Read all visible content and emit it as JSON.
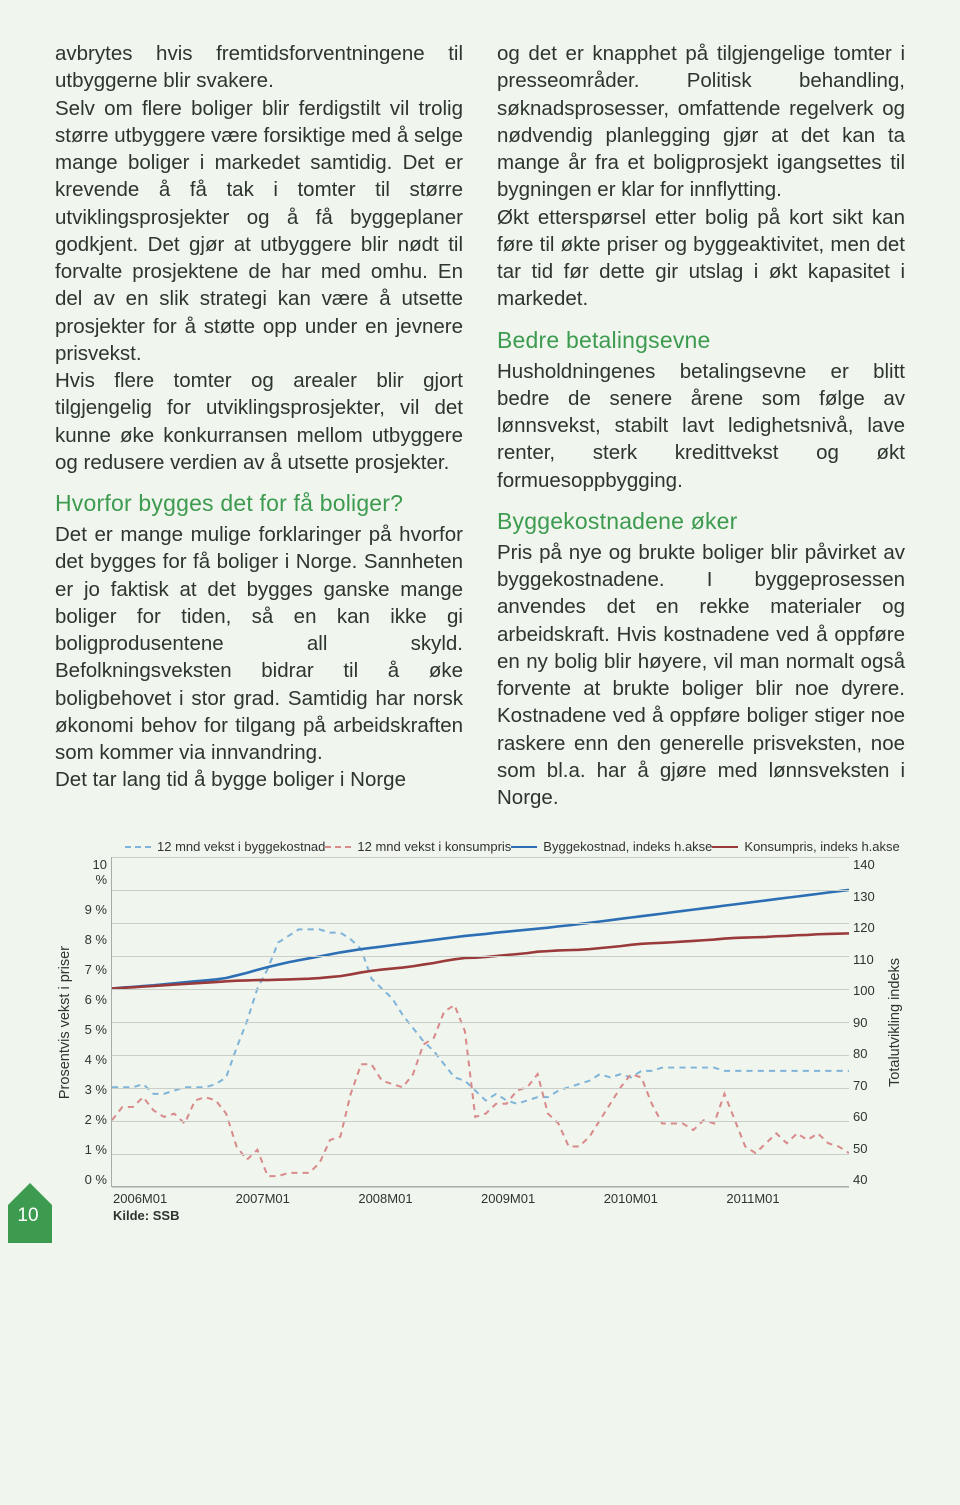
{
  "colors": {
    "page_bg": "#f0f5ee",
    "body_text": "#2d3530",
    "heading": "#3d9b4f",
    "grid": "#c9cec9",
    "series_bygge_dash": "#7fb4d9",
    "series_konsum_dash": "#d98b8b",
    "series_bygge_solid": "#2d6fb4",
    "series_konsum_solid": "#9a3a3a",
    "badge": "#3d9b4f"
  },
  "left_column": {
    "p1": "avbrytes hvis fremtidsforventningene til utbyggerne blir svakere.",
    "p2": "Selv om flere boliger blir ferdigstilt vil trolig større utbyggere være forsiktige med å selge mange boliger i markedet samtidig. Det er krevende å få tak i tomter til større utviklingsprosjekter og å få byggeplaner godkjent. Det gjør at utbyggere blir nødt til forvalte prosjektene de har med omhu. En del av en slik strategi kan være å utsette prosjekter for å støtte opp under en jevnere prisvekst.",
    "p3": "Hvis flere tomter og arealer blir gjort tilgjengelig for utviklingsprosjekter, vil det kunne øke konkurransen mellom utbyggere og redusere verdien av å utsette prosjekter.",
    "h1": "Hvorfor bygges det for få boliger?",
    "p4": "Det er mange mulige forklaringer på hvorfor det bygges for få boliger i Norge. Sannheten er jo faktisk at det bygges ganske mange boliger for tiden, så en kan ikke gi boligprodusentene all skyld. Befolkningsveksten bidrar til å øke boligbehovet i stor grad. Samtidig har norsk økonomi behov for tilgang på arbeidskraften som kommer via innvandring.",
    "p5": "Det tar lang tid å bygge boliger i Norge"
  },
  "right_column": {
    "p1": "og det er knapphet på tilgjengelige tomter i presseområder. Politisk behandling, søknadsprosesser, omfattende regelverk og nødvendig planlegging gjør at det kan ta mange år fra et boligprosjekt igangsettes til bygningen er klar for innflytting.",
    "p2": "Økt etterspørsel etter bolig på kort sikt kan føre til økte priser og byggeaktivitet, men det tar tid før dette gir utslag i økt kapasitet i markedet.",
    "h1": "Bedre betalingsevne",
    "p3": "Husholdningenes betalingsevne er blitt bedre de senere årene som følge av lønnsvekst, stabilt lavt ledighetsnivå, lave renter, sterk kredittvekst og økt formuesoppbygging.",
    "h2": "Byggekostnadene øker",
    "p4": "Pris på nye og brukte boliger blir påvirket av byggekostnadene. I byggeprosessen anvendes det en rekke materialer og arbeidskraft. Hvis kostnadene ved å oppføre en ny bolig blir høyere, vil man normalt også forvente at brukte boliger blir noe dyrere. Kostnadene ved å oppføre boliger stiger noe raskere enn den generelle prisveksten, noe som bl.a. har å gjøre med lønnsveksten i Norge."
  },
  "chart": {
    "legend": {
      "a": "12 mnd vekst i byggekostnad",
      "b": "12 mnd vekst i konsumpris",
      "c": "Byggekostnad, indeks h.akse",
      "d": "Konsumpris, indeks h.akse"
    },
    "y_left_label": "Prosentvis vekst i priser",
    "y_right_label": "Totalutvikling indeks",
    "y_left_ticks": [
      "10 %",
      "9 %",
      "8 %",
      "7 %",
      "6 %",
      "5 %",
      "4 %",
      "3 %",
      "2 %",
      "1 %",
      "0 %"
    ],
    "y_right_ticks": [
      "140",
      "130",
      "120",
      "110",
      "100",
      "90",
      "80",
      "70",
      "60",
      "50",
      "40"
    ],
    "x_ticks": [
      "2006M01",
      "2007M01",
      "2008M01",
      "2009M01",
      "2010M01",
      "2011M01"
    ],
    "source": "Kilde: SSB",
    "y_left_min": 0,
    "y_left_max": 10,
    "y_right_min": 40,
    "y_right_max": 140,
    "series": {
      "bygge_dash": [
        3.0,
        3.0,
        3.0,
        3.1,
        2.8,
        2.8,
        2.9,
        3.0,
        3.0,
        3.0,
        3.1,
        3.3,
        4.2,
        5.0,
        6.0,
        6.6,
        7.4,
        7.6,
        7.8,
        7.8,
        7.8,
        7.7,
        7.7,
        7.5,
        7.2,
        6.3,
        6.0,
        5.7,
        5.2,
        4.8,
        4.4,
        4.1,
        3.7,
        3.3,
        3.2,
        2.9,
        2.6,
        2.8,
        2.6,
        2.5,
        2.6,
        2.7,
        2.7,
        2.9,
        3.0,
        3.1,
        3.2,
        3.4,
        3.3,
        3.4,
        3.3,
        3.5,
        3.5,
        3.6,
        3.6,
        3.6,
        3.6,
        3.6,
        3.6,
        3.5,
        3.5,
        3.5,
        3.5,
        3.5,
        3.5,
        3.5,
        3.5,
        3.5,
        3.5,
        3.5,
        3.5,
        3.5
      ],
      "konsum_dash": [
        2.0,
        2.4,
        2.4,
        2.7,
        2.3,
        2.1,
        2.2,
        1.9,
        2.6,
        2.7,
        2.6,
        2.2,
        1.2,
        0.8,
        1.1,
        0.3,
        0.3,
        0.4,
        0.4,
        0.4,
        0.7,
        1.4,
        1.5,
        2.8,
        3.7,
        3.7,
        3.2,
        3.1,
        3.0,
        3.4,
        4.3,
        4.5,
        5.3,
        5.5,
        4.7,
        2.1,
        2.2,
        2.5,
        2.5,
        2.9,
        3.0,
        3.4,
        2.2,
        1.9,
        1.2,
        1.2,
        1.5,
        2.0,
        2.5,
        3.0,
        3.4,
        3.3,
        2.5,
        1.9,
        1.9,
        1.9,
        1.7,
        2.0,
        1.9,
        2.8,
        2.0,
        1.2,
        1.0,
        1.3,
        1.6,
        1.3,
        1.6,
        1.4,
        1.6,
        1.3,
        1.2,
        1.0
      ],
      "bygge_solid": [
        100,
        100.3,
        100.5,
        100.8,
        101,
        101.3,
        101.6,
        101.9,
        102.2,
        102.5,
        102.8,
        103.2,
        104,
        104.8,
        105.7,
        106.5,
        107.3,
        108,
        108.6,
        109.2,
        109.8,
        110.4,
        111,
        111.5,
        112,
        112.4,
        112.8,
        113.2,
        113.6,
        114,
        114.4,
        114.8,
        115.2,
        115.6,
        116,
        116.3,
        116.6,
        117,
        117.3,
        117.6,
        117.9,
        118.2,
        118.5,
        118.9,
        119.2,
        119.6,
        120,
        120.4,
        120.8,
        121.2,
        121.6,
        122,
        122.4,
        122.8,
        123.2,
        123.6,
        124,
        124.4,
        124.8,
        125.2,
        125.6,
        126,
        126.4,
        126.8,
        127.2,
        127.6,
        128,
        128.4,
        128.8,
        129.2,
        129.6,
        130
      ],
      "konsum_solid": [
        100,
        100.2,
        100.4,
        100.6,
        100.8,
        101,
        101.2,
        101.4,
        101.6,
        101.8,
        102,
        102.2,
        102.4,
        102.5,
        102.6,
        102.6,
        102.7,
        102.8,
        102.9,
        103,
        103.2,
        103.5,
        103.8,
        104.3,
        104.9,
        105.4,
        105.8,
        106.1,
        106.4,
        106.8,
        107.3,
        107.8,
        108.4,
        108.9,
        109.3,
        109.4,
        109.6,
        109.9,
        110.2,
        110.5,
        110.8,
        111.2,
        111.4,
        111.6,
        111.7,
        111.8,
        112,
        112.3,
        112.6,
        112.9,
        113.3,
        113.6,
        113.8,
        113.9,
        114.1,
        114.3,
        114.5,
        114.7,
        114.9,
        115.2,
        115.4,
        115.5,
        115.6,
        115.7,
        115.9,
        116,
        116.2,
        116.3,
        116.5,
        116.6,
        116.7,
        116.8
      ]
    }
  },
  "page_number": "10"
}
